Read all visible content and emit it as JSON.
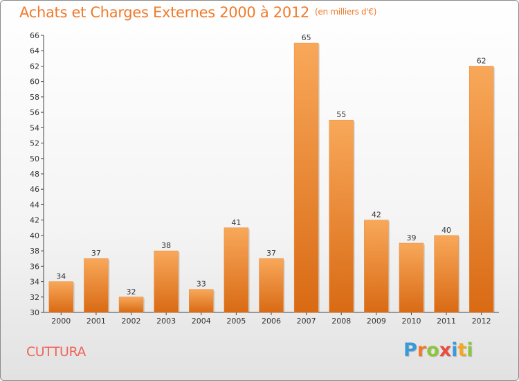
{
  "header": {
    "title": "Achats et Charges Externes 2000 à 2012",
    "unit": "(en milliers d'€)"
  },
  "footer": {
    "commune": "CUTTURA",
    "logo_letters": [
      "P",
      "r",
      "o",
      "x",
      "i",
      "t",
      "i"
    ],
    "logo_colors": [
      "#3a9ad9",
      "#f07a2a",
      "#8cc63f",
      "#e84c3d",
      "#3a9ad9",
      "#f5a623",
      "#8cc63f"
    ]
  },
  "colors": {
    "bar_top": "#f8a85a",
    "bar_bottom": "#d96a14",
    "title": "#f07a2a",
    "commune": "#f0645a"
  },
  "chart_data": {
    "type": "bar",
    "title": "Achats et Charges Externes 2000 à 2012",
    "subtitle": "(en milliers d'€)",
    "categories": [
      "2000",
      "2001",
      "2002",
      "2003",
      "2004",
      "2005",
      "2006",
      "2007",
      "2008",
      "2009",
      "2010",
      "2011",
      "2012"
    ],
    "values": [
      34,
      37,
      32,
      38,
      33,
      41,
      37,
      65,
      55,
      42,
      39,
      40,
      62
    ],
    "ylim": [
      30,
      66
    ],
    "yticks": [
      30,
      32,
      34,
      36,
      38,
      40,
      42,
      44,
      46,
      48,
      50,
      52,
      54,
      56,
      58,
      60,
      62,
      64,
      66
    ],
    "grid": false,
    "data_labels": true
  }
}
